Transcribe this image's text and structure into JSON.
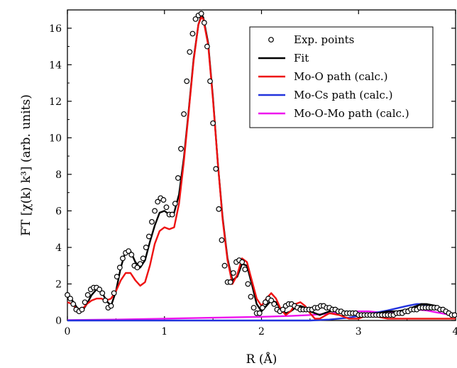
{
  "chart_data": {
    "type": "line",
    "xlabel": "R (Å)",
    "ylabel": "FT [χ(k) k³] (arb. units)",
    "xlim": [
      0,
      4
    ],
    "ylim": [
      0,
      17
    ],
    "xticks": [
      0,
      1,
      2,
      3,
      4
    ],
    "yticks": [
      0,
      2,
      4,
      6,
      8,
      10,
      12,
      14,
      16
    ],
    "grid": false,
    "legend_position": "top-right",
    "series": [
      {
        "name": "Exp. points",
        "style": "markers",
        "color": "#000000",
        "x": [
          0.0,
          0.03,
          0.06,
          0.09,
          0.12,
          0.15,
          0.18,
          0.21,
          0.24,
          0.27,
          0.3,
          0.33,
          0.36,
          0.39,
          0.42,
          0.45,
          0.48,
          0.51,
          0.54,
          0.57,
          0.6,
          0.63,
          0.66,
          0.69,
          0.72,
          0.75,
          0.78,
          0.81,
          0.84,
          0.87,
          0.9,
          0.93,
          0.96,
          0.99,
          1.02,
          1.05,
          1.08,
          1.11,
          1.14,
          1.17,
          1.2,
          1.23,
          1.26,
          1.29,
          1.32,
          1.35,
          1.38,
          1.41,
          1.44,
          1.47,
          1.5,
          1.53,
          1.56,
          1.59,
          1.62,
          1.65,
          1.68,
          1.71,
          1.74,
          1.77,
          1.8,
          1.83,
          1.86,
          1.89,
          1.92,
          1.95,
          1.98,
          2.01,
          2.04,
          2.07,
          2.1,
          2.13,
          2.16,
          2.19,
          2.22,
          2.25,
          2.28,
          2.31,
          2.34,
          2.37,
          2.4,
          2.43,
          2.46,
          2.49,
          2.52,
          2.55,
          2.58,
          2.61,
          2.64,
          2.67,
          2.7,
          2.73,
          2.76,
          2.79,
          2.82,
          2.85,
          2.88,
          2.91,
          2.94,
          2.97,
          3.0,
          3.03,
          3.06,
          3.09,
          3.12,
          3.15,
          3.18,
          3.21,
          3.24,
          3.27,
          3.3,
          3.33,
          3.36,
          3.39,
          3.42,
          3.45,
          3.48,
          3.51,
          3.54,
          3.57,
          3.6,
          3.63,
          3.66,
          3.69,
          3.72,
          3.75,
          3.78,
          3.81,
          3.84,
          3.87,
          3.9,
          3.93,
          3.96,
          3.99
        ],
        "y": [
          1.4,
          1.2,
          0.9,
          0.6,
          0.5,
          0.6,
          1.0,
          1.4,
          1.7,
          1.8,
          1.8,
          1.7,
          1.5,
          1.1,
          0.7,
          0.8,
          1.5,
          2.4,
          2.9,
          3.4,
          3.7,
          3.8,
          3.6,
          3.0,
          2.9,
          3.1,
          3.4,
          4.0,
          4.6,
          5.4,
          6.0,
          6.5,
          6.7,
          6.6,
          6.2,
          5.8,
          5.8,
          6.4,
          7.8,
          9.4,
          11.3,
          13.1,
          14.7,
          15.7,
          16.5,
          16.7,
          16.8,
          16.3,
          15.0,
          13.1,
          10.8,
          8.3,
          6.1,
          4.4,
          3.0,
          2.1,
          2.1,
          2.6,
          3.2,
          3.3,
          3.2,
          2.8,
          2.0,
          1.3,
          0.7,
          0.4,
          0.4,
          0.7,
          1.0,
          1.2,
          1.1,
          0.9,
          0.6,
          0.5,
          0.6,
          0.8,
          0.9,
          0.9,
          0.8,
          0.7,
          0.6,
          0.6,
          0.6,
          0.6,
          0.6,
          0.7,
          0.7,
          0.8,
          0.8,
          0.7,
          0.7,
          0.6,
          0.6,
          0.5,
          0.5,
          0.4,
          0.4,
          0.4,
          0.4,
          0.4,
          0.3,
          0.3,
          0.3,
          0.3,
          0.3,
          0.3,
          0.3,
          0.3,
          0.3,
          0.3,
          0.3,
          0.3,
          0.3,
          0.4,
          0.4,
          0.4,
          0.5,
          0.5,
          0.6,
          0.6,
          0.6,
          0.7,
          0.7,
          0.7,
          0.7,
          0.7,
          0.7,
          0.7,
          0.6,
          0.6,
          0.5,
          0.4,
          0.3,
          0.3
        ]
      },
      {
        "name": "Fit",
        "style": "line",
        "color": "#000000",
        "x": [
          0.0,
          0.05,
          0.1,
          0.15,
          0.2,
          0.25,
          0.3,
          0.35,
          0.4,
          0.45,
          0.5,
          0.55,
          0.6,
          0.65,
          0.7,
          0.75,
          0.8,
          0.85,
          0.9,
          0.95,
          1.0,
          1.05,
          1.1,
          1.15,
          1.2,
          1.25,
          1.3,
          1.35,
          1.38,
          1.4,
          1.45,
          1.5,
          1.55,
          1.6,
          1.65,
          1.7,
          1.75,
          1.8,
          1.85,
          1.9,
          1.95,
          2.0,
          2.05,
          2.1,
          2.15,
          2.2,
          2.25,
          2.3,
          2.35,
          2.4,
          2.45,
          2.5,
          2.6,
          2.7,
          2.8,
          2.9,
          3.0,
          3.1,
          3.2,
          3.3,
          3.4,
          3.5,
          3.6,
          3.65,
          3.7,
          3.8,
          3.9,
          4.0
        ],
        "y": [
          1.4,
          1.1,
          0.7,
          0.5,
          0.9,
          1.4,
          1.7,
          1.6,
          1.1,
          0.8,
          1.6,
          2.9,
          3.8,
          3.8,
          3.2,
          2.9,
          3.3,
          4.3,
          5.2,
          5.9,
          6.0,
          5.8,
          5.9,
          6.9,
          8.9,
          11.5,
          14.3,
          16.2,
          16.7,
          16.6,
          15.2,
          12.2,
          8.6,
          5.6,
          3.4,
          2.2,
          2.4,
          3.1,
          3.0,
          2.0,
          0.9,
          0.5,
          0.8,
          1.1,
          1.0,
          0.6,
          0.4,
          0.5,
          0.7,
          0.8,
          0.7,
          0.5,
          0.3,
          0.5,
          0.5,
          0.4,
          0.3,
          0.3,
          0.4,
          0.5,
          0.5,
          0.6,
          0.8,
          0.9,
          0.9,
          0.8,
          0.5,
          0.3
        ]
      },
      {
        "name": "Mo-O path (calc.)",
        "style": "line",
        "color": "#ee1111",
        "x": [
          0.0,
          0.05,
          0.1,
          0.15,
          0.2,
          0.25,
          0.3,
          0.35,
          0.4,
          0.45,
          0.5,
          0.55,
          0.6,
          0.65,
          0.7,
          0.75,
          0.8,
          0.85,
          0.9,
          0.95,
          1.0,
          1.05,
          1.1,
          1.15,
          1.2,
          1.25,
          1.3,
          1.35,
          1.38,
          1.4,
          1.45,
          1.5,
          1.55,
          1.6,
          1.65,
          1.7,
          1.75,
          1.8,
          1.85,
          1.9,
          1.95,
          2.0,
          2.05,
          2.1,
          2.15,
          2.2,
          2.25,
          2.3,
          2.35,
          2.4,
          2.45,
          2.5,
          2.55,
          2.6,
          2.7,
          2.8,
          2.9,
          3.0,
          3.05,
          3.1,
          3.2,
          3.3,
          3.4,
          3.5,
          3.6,
          3.7,
          3.8,
          3.9,
          4.0
        ],
        "y": [
          1.0,
          0.9,
          0.6,
          0.6,
          0.9,
          1.1,
          1.2,
          1.2,
          1.1,
          1.2,
          1.6,
          2.2,
          2.6,
          2.6,
          2.2,
          1.9,
          2.1,
          3.0,
          4.2,
          4.9,
          5.1,
          5.0,
          5.1,
          6.4,
          8.7,
          11.4,
          14.2,
          16.2,
          16.6,
          16.5,
          15.1,
          12.1,
          8.6,
          5.5,
          3.3,
          2.0,
          2.5,
          3.4,
          3.2,
          2.2,
          1.2,
          0.8,
          1.2,
          1.5,
          1.2,
          0.6,
          0.3,
          0.5,
          0.9,
          1.0,
          0.8,
          0.4,
          0.1,
          0.1,
          0.4,
          0.3,
          0.1,
          0.1,
          0.2,
          0.3,
          0.2,
          0.1,
          0.1,
          0.1,
          0.1,
          0.1,
          0.1,
          0.1,
          0.1
        ]
      },
      {
        "name": "Mo-Cs path (calc.)",
        "style": "line",
        "color": "#2233dd",
        "x": [
          0.0,
          0.5,
          1.0,
          1.5,
          2.0,
          2.5,
          2.7,
          2.9,
          3.1,
          3.3,
          3.5,
          3.6,
          3.65,
          3.7,
          3.8,
          3.9,
          4.0
        ],
        "y": [
          0.0,
          0.0,
          0.0,
          0.0,
          0.0,
          0.0,
          0.05,
          0.15,
          0.35,
          0.55,
          0.8,
          0.9,
          0.9,
          0.85,
          0.7,
          0.45,
          0.25
        ]
      },
      {
        "name": "Mo-O-Mo path (calc.)",
        "style": "line",
        "color": "#ee11ee",
        "x": [
          0.0,
          0.5,
          1.0,
          1.5,
          2.0,
          2.3,
          2.5,
          2.7,
          2.9,
          3.0,
          3.1,
          3.2,
          3.3,
          3.4,
          3.5,
          3.6,
          3.7,
          3.8,
          3.9,
          4.0
        ],
        "y": [
          0.02,
          0.05,
          0.1,
          0.15,
          0.2,
          0.25,
          0.3,
          0.38,
          0.45,
          0.5,
          0.5,
          0.45,
          0.4,
          0.45,
          0.55,
          0.6,
          0.55,
          0.45,
          0.35,
          0.25
        ]
      }
    ]
  }
}
